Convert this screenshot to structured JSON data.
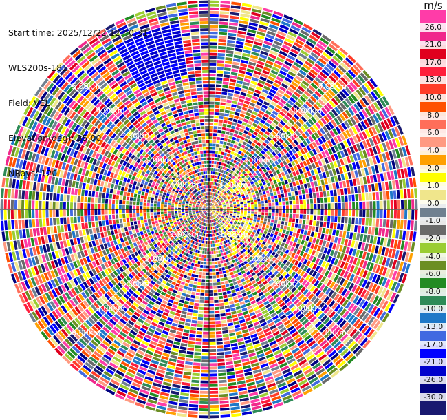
{
  "header": {
    "start_time": "Start time: 2025/12/22 12:40:31",
    "instrument": "WLS200s-181",
    "field": "Field: VEL",
    "elevation": "Elevation(deg): 35.00",
    "nrays": "NRays: 120"
  },
  "chart_data": {
    "type": "heatmap",
    "projection": "polar-ppi",
    "field": "VEL",
    "unit": "m/s",
    "n_rays": 120,
    "range_ring_labels": [
      "1.00km",
      "2.00km",
      "3.00km",
      "4.00km",
      "5.00km"
    ],
    "range_rings_km": [
      1,
      2,
      3,
      4,
      5
    ],
    "max_range_km": 6,
    "colorbar": {
      "title": "m/s",
      "ticks": [
        "26.0",
        "21.0",
        "17.0",
        "13.0",
        "10.0",
        "8.0",
        "6.0",
        "4.0",
        "2.0",
        "1.0",
        "0.0",
        "-1.0",
        "-2.0",
        "-4.0",
        "-6.0",
        "-8.0",
        "-10.0",
        "-13.0",
        "-17.0",
        "-21.0",
        "-26.0",
        "-30.0"
      ],
      "bins": [
        {
          "min": 26,
          "max": 30,
          "color": "#ff3ca8"
        },
        {
          "min": 21,
          "max": 26,
          "color": "#f0288c"
        },
        {
          "min": 17,
          "max": 21,
          "color": "#e0001e"
        },
        {
          "min": 13,
          "max": 17,
          "color": "#ff1e3c"
        },
        {
          "min": 10,
          "max": 13,
          "color": "#ff3c28"
        },
        {
          "min": 8,
          "max": 10,
          "color": "#ff5000"
        },
        {
          "min": 6,
          "max": 8,
          "color": "#ff6e5a"
        },
        {
          "min": 4,
          "max": 6,
          "color": "#ff9a82"
        },
        {
          "min": 2,
          "max": 4,
          "color": "#ffa000"
        },
        {
          "min": 1,
          "max": 2,
          "color": "#ffff00"
        },
        {
          "min": 0,
          "max": 1,
          "color": "#f0e68c"
        },
        {
          "min": -1,
          "max": 0,
          "color": "#708090"
        },
        {
          "min": -2,
          "max": -1,
          "color": "#696969"
        },
        {
          "min": -4,
          "max": -2,
          "color": "#9acd32"
        },
        {
          "min": -6,
          "max": -4,
          "color": "#6b8e23"
        },
        {
          "min": -8,
          "max": -6,
          "color": "#228b22"
        },
        {
          "min": -10,
          "max": -8,
          "color": "#2e8b57"
        },
        {
          "min": -13,
          "max": -10,
          "color": "#1e78c8"
        },
        {
          "min": -17,
          "max": -13,
          "color": "#4169e1"
        },
        {
          "min": -21,
          "max": -17,
          "color": "#0000ff"
        },
        {
          "min": -26,
          "max": -21,
          "color": "#0000cd"
        },
        {
          "min": -30,
          "max": -26,
          "color": "#000080"
        },
        {
          "min": -35,
          "max": -30,
          "color": "#191970"
        }
      ]
    }
  }
}
